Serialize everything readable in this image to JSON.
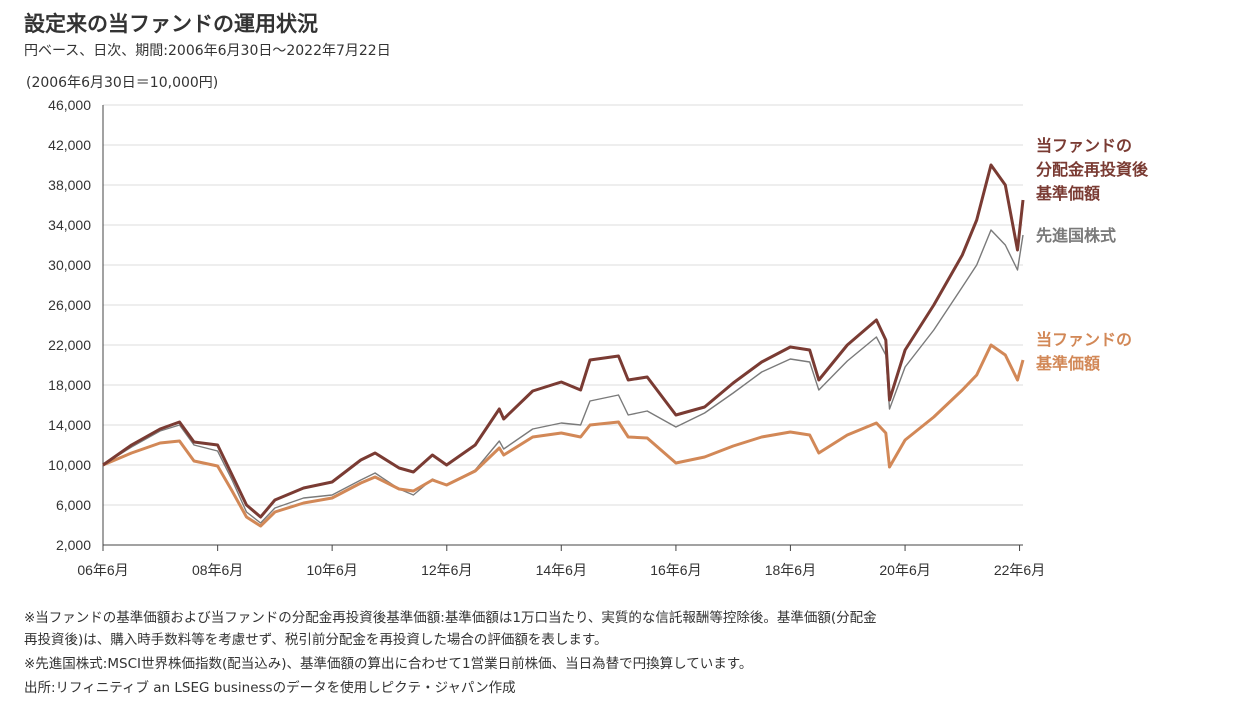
{
  "header": {
    "title": "設定来の当ファンドの運用状況",
    "subtitle": "円ベース、日次、期間:2006年6月30日～2022年7月22日",
    "base_note": "(2006年6月30日＝10,000円)"
  },
  "chart_data": {
    "type": "line",
    "title": "設定来の当ファンドの運用状況",
    "ylim": [
      2000,
      46000
    ],
    "yticks": [
      "2,000",
      "6,000",
      "10,000",
      "14,000",
      "18,000",
      "22,000",
      "26,000",
      "30,000",
      "34,000",
      "38,000",
      "42,000",
      "46,000"
    ],
    "xticks": [
      "06年6月",
      "08年6月",
      "10年6月",
      "12年6月",
      "14年6月",
      "16年6月",
      "18年6月",
      "20年6月",
      "22年6月"
    ],
    "x_range": [
      "2006-06-30",
      "2022-07-22"
    ],
    "grid": true,
    "series": [
      {
        "name": "当ファンドの分配金再投資後基準価額",
        "label_lines": [
          "当ファンドの",
          "分配金再投資後",
          "基準価額"
        ],
        "color": "#7a3b33",
        "points": [
          [
            "2006-06-30",
            10000
          ],
          [
            "2006-12-29",
            12000
          ],
          [
            "2007-06-29",
            13600
          ],
          [
            "2007-10-31",
            14300
          ],
          [
            "2008-01-31",
            12300
          ],
          [
            "2008-06-30",
            12000
          ],
          [
            "2008-09-30",
            9000
          ],
          [
            "2008-12-31",
            6000
          ],
          [
            "2009-03-31",
            4800
          ],
          [
            "2009-06-30",
            6500
          ],
          [
            "2009-12-30",
            7700
          ],
          [
            "2010-06-30",
            8300
          ],
          [
            "2010-12-30",
            10500
          ],
          [
            "2011-03-31",
            11200
          ],
          [
            "2011-08-31",
            9700
          ],
          [
            "2011-11-30",
            9300
          ],
          [
            "2012-03-30",
            11000
          ],
          [
            "2012-06-29",
            10000
          ],
          [
            "2012-12-28",
            12000
          ],
          [
            "2013-05-31",
            15600
          ],
          [
            "2013-06-28",
            14600
          ],
          [
            "2013-12-30",
            17400
          ],
          [
            "2014-06-30",
            18300
          ],
          [
            "2014-10-31",
            17500
          ],
          [
            "2014-12-30",
            20500
          ],
          [
            "2015-06-30",
            20900
          ],
          [
            "2015-08-31",
            18500
          ],
          [
            "2015-12-30",
            18800
          ],
          [
            "2016-06-30",
            15000
          ],
          [
            "2016-12-30",
            15800
          ],
          [
            "2017-06-30",
            18200
          ],
          [
            "2017-12-29",
            20300
          ],
          [
            "2018-06-29",
            21800
          ],
          [
            "2018-10-31",
            21500
          ],
          [
            "2018-12-28",
            18500
          ],
          [
            "2019-06-28",
            22000
          ],
          [
            "2019-12-30",
            24500
          ],
          [
            "2020-02-28",
            22500
          ],
          [
            "2020-03-23",
            16500
          ],
          [
            "2020-06-30",
            21500
          ],
          [
            "2020-12-30",
            26000
          ],
          [
            "2021-06-30",
            31000
          ],
          [
            "2021-09-30",
            34500
          ],
          [
            "2021-12-30",
            40000
          ],
          [
            "2022-03-31",
            38000
          ],
          [
            "2022-06-17",
            31500
          ],
          [
            "2022-07-22",
            36500
          ]
        ]
      },
      {
        "name": "先進国株式",
        "label_lines": [
          "先進国株式"
        ],
        "color": "#7a7a7a",
        "points": [
          [
            "2006-06-30",
            10000
          ],
          [
            "2006-12-29",
            11800
          ],
          [
            "2007-06-29",
            13400
          ],
          [
            "2007-10-31",
            14000
          ],
          [
            "2008-01-31",
            12000
          ],
          [
            "2008-06-30",
            11400
          ],
          [
            "2008-09-30",
            8500
          ],
          [
            "2008-12-31",
            5300
          ],
          [
            "2009-03-31",
            4200
          ],
          [
            "2009-06-30",
            5700
          ],
          [
            "2009-12-30",
            6700
          ],
          [
            "2010-06-30",
            7000
          ],
          [
            "2010-12-30",
            8500
          ],
          [
            "2011-03-31",
            9200
          ],
          [
            "2011-08-31",
            7600
          ],
          [
            "2011-11-30",
            7000
          ],
          [
            "2012-03-30",
            8600
          ],
          [
            "2012-06-29",
            8000
          ],
          [
            "2012-12-28",
            9500
          ],
          [
            "2013-05-31",
            12400
          ],
          [
            "2013-06-28",
            11600
          ],
          [
            "2013-12-30",
            13600
          ],
          [
            "2014-06-30",
            14200
          ],
          [
            "2014-10-31",
            14000
          ],
          [
            "2014-12-30",
            16400
          ],
          [
            "2015-06-30",
            17000
          ],
          [
            "2015-08-31",
            15000
          ],
          [
            "2015-12-30",
            15400
          ],
          [
            "2016-06-30",
            13800
          ],
          [
            "2016-12-30",
            15200
          ],
          [
            "2017-06-30",
            17200
          ],
          [
            "2017-12-29",
            19300
          ],
          [
            "2018-06-29",
            20600
          ],
          [
            "2018-10-31",
            20300
          ],
          [
            "2018-12-28",
            17500
          ],
          [
            "2019-06-28",
            20400
          ],
          [
            "2019-12-30",
            22800
          ],
          [
            "2020-02-28",
            21000
          ],
          [
            "2020-03-23",
            15600
          ],
          [
            "2020-06-30",
            19800
          ],
          [
            "2020-12-30",
            23500
          ],
          [
            "2021-06-30",
            27800
          ],
          [
            "2021-09-30",
            30000
          ],
          [
            "2021-12-30",
            33500
          ],
          [
            "2022-03-31",
            32000
          ],
          [
            "2022-06-17",
            29500
          ],
          [
            "2022-07-22",
            33000
          ]
        ]
      },
      {
        "name": "当ファンドの基準価額",
        "label_lines": [
          "当ファンドの",
          "基準価額"
        ],
        "color": "#d28857",
        "points": [
          [
            "2006-06-30",
            10000
          ],
          [
            "2006-12-29",
            11200
          ],
          [
            "2007-06-29",
            12200
          ],
          [
            "2007-10-31",
            12400
          ],
          [
            "2008-01-31",
            10400
          ],
          [
            "2008-06-30",
            9900
          ],
          [
            "2008-09-30",
            7400
          ],
          [
            "2008-12-31",
            4800
          ],
          [
            "2009-03-31",
            3900
          ],
          [
            "2009-06-30",
            5300
          ],
          [
            "2009-12-30",
            6200
          ],
          [
            "2010-06-30",
            6700
          ],
          [
            "2010-12-30",
            8200
          ],
          [
            "2011-03-31",
            8800
          ],
          [
            "2011-08-31",
            7600
          ],
          [
            "2011-11-30",
            7400
          ],
          [
            "2012-03-30",
            8500
          ],
          [
            "2012-06-29",
            8000
          ],
          [
            "2012-12-28",
            9400
          ],
          [
            "2013-05-31",
            11700
          ],
          [
            "2013-06-28",
            11000
          ],
          [
            "2013-12-30",
            12800
          ],
          [
            "2014-06-30",
            13200
          ],
          [
            "2014-10-31",
            12800
          ],
          [
            "2014-12-30",
            14000
          ],
          [
            "2015-06-30",
            14300
          ],
          [
            "2015-08-31",
            12800
          ],
          [
            "2015-12-30",
            12700
          ],
          [
            "2016-06-30",
            10200
          ],
          [
            "2016-12-30",
            10800
          ],
          [
            "2017-06-30",
            11900
          ],
          [
            "2017-12-29",
            12800
          ],
          [
            "2018-06-29",
            13300
          ],
          [
            "2018-10-31",
            13000
          ],
          [
            "2018-12-28",
            11200
          ],
          [
            "2019-06-28",
            13000
          ],
          [
            "2019-12-30",
            14200
          ],
          [
            "2020-02-28",
            13200
          ],
          [
            "2020-03-23",
            9800
          ],
          [
            "2020-06-30",
            12500
          ],
          [
            "2020-12-30",
            14800
          ],
          [
            "2021-06-30",
            17500
          ],
          [
            "2021-09-30",
            19000
          ],
          [
            "2021-12-30",
            22000
          ],
          [
            "2022-03-31",
            21000
          ],
          [
            "2022-06-17",
            18500
          ],
          [
            "2022-07-22",
            20500
          ]
        ]
      }
    ]
  },
  "footnotes": [
    "※当ファンドの基準価額および当ファンドの分配金再投資後基準価額:基準価額は1万口当たり、実質的な信託報酬等控除後。基準価額(分配金",
    "再投資後)は、購入時手数料等を考慮せず、税引前分配金を再投資した場合の評価額を表します。",
    "※先進国株式:MSCI世界株価指数(配当込み)、基準価額の算出に合わせて1営業日前株価、当日為替で円換算しています。",
    "出所:リフィニティブ an LSEG businessのデータを使用しピクテ・ジャパン作成"
  ]
}
